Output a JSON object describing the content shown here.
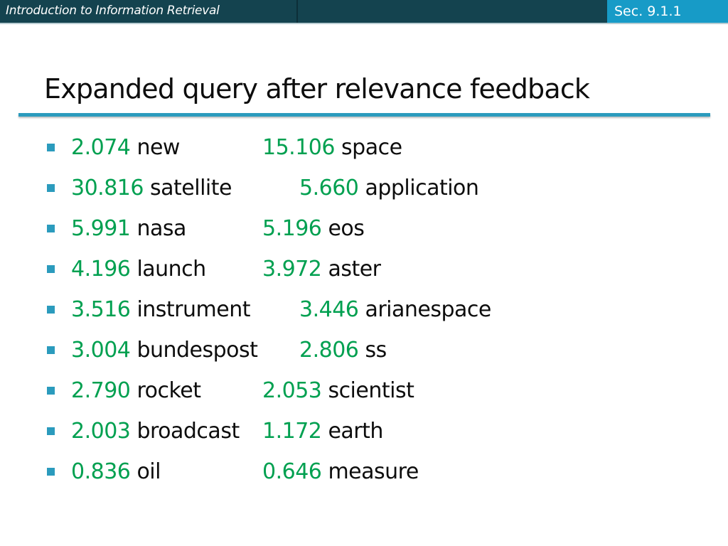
{
  "header": {
    "course_title": "Introduction to Information Retrieval",
    "section": "Sec. 9.1.1"
  },
  "slide": {
    "title": "Expanded query after relevance feedback"
  },
  "colors": {
    "header_bg": "#14434f",
    "section_bg": "#179bc7",
    "accent": "#2b9bbd",
    "weight_green": "#00a050"
  },
  "terms": [
    {
      "w1": "2.074",
      "t1": "new",
      "w2": "15.106",
      "t2": "space"
    },
    {
      "w1": "30.816",
      "t1": "satellite",
      "w2": "5.660",
      "t2": "application"
    },
    {
      "w1": "5.991",
      "t1": "nasa",
      "w2": "5.196",
      "t2": "eos"
    },
    {
      "w1": "4.196",
      "t1": "launch",
      "w2": "3.972",
      "t2": "aster"
    },
    {
      "w1": "3.516",
      "t1": "instrument",
      "w2": "3.446",
      "t2": "arianespace"
    },
    {
      "w1": "3.004",
      "t1": "bundespost",
      "w2": "2.806",
      "t2": "ss"
    },
    {
      "w1": "2.790",
      "t1": "rocket",
      "w2": "2.053",
      "t2": "scientist"
    },
    {
      "w1": "2.003",
      "t1": "broadcast",
      "w2": "1.172",
      "t2": "earth"
    },
    {
      "w1": "0.836",
      "t1": "oil",
      "w2": "0.646",
      "t2": "measure"
    }
  ]
}
